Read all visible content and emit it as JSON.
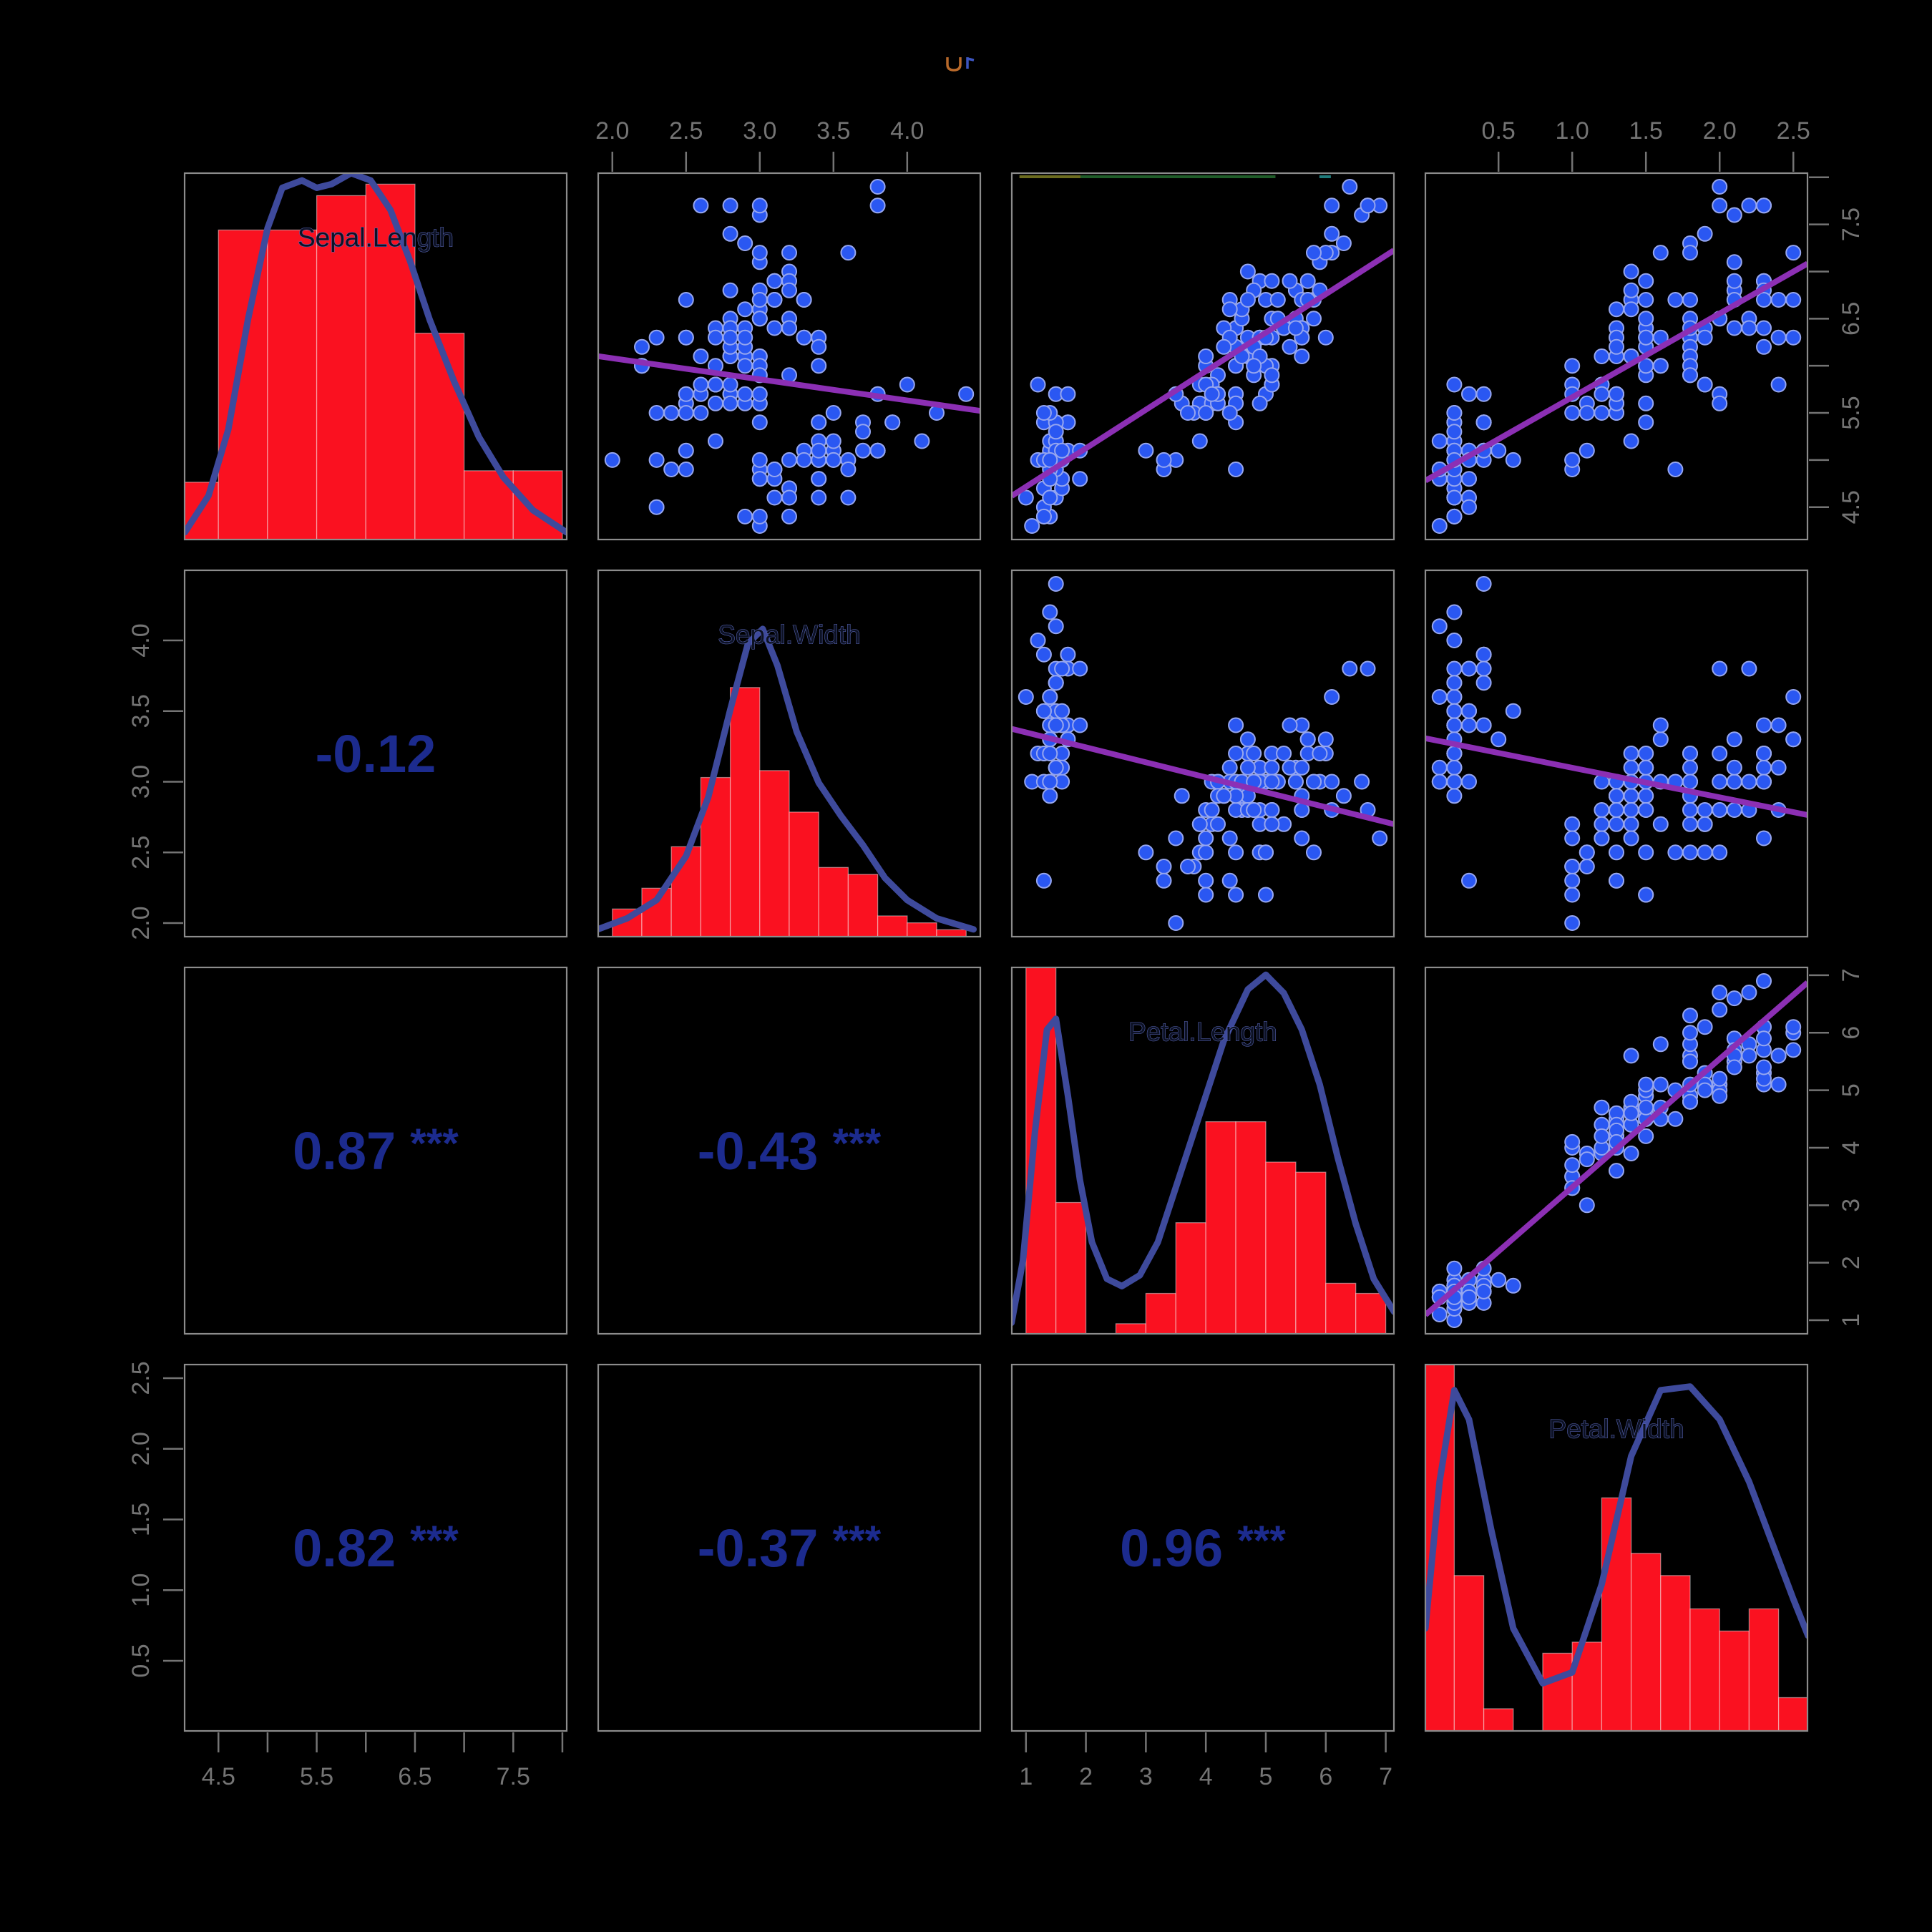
{
  "figure": {
    "kind": "R pairs scatterplot matrix (iris measurements)",
    "background": "#000000"
  },
  "colors": {
    "background": "#000000",
    "panel_border": "#8c8c8c",
    "axis_text": "#747474",
    "tick": "#747474",
    "hist_fill": "#fa1120",
    "hist_edge": "#ffffff",
    "density_line": "#3e4a9c",
    "point_fill": "#2a57f2",
    "point_edge": "#96a6ef",
    "regression_line": "#8c2fb4",
    "correlation_text": "#1c2b8e",
    "diag_label": "#0d1224",
    "diag_label_halo": "#5a67b8",
    "artifact_olive": "#6b6b1e",
    "artifact_green": "#1f5c28",
    "artifact_teal": "#1e7a7a",
    "title_mark_orange": "#b8692a",
    "title_mark_blue": "#3c55c0"
  },
  "variables": [
    {
      "name": "Sepal.Length",
      "min": 4.156,
      "max": 8.044,
      "hist": {
        "start": 4.0,
        "step": 0.5,
        "counts": [
          5,
          27,
          27,
          30,
          31,
          18,
          6,
          6
        ]
      },
      "bar_scale": 0.97,
      "density": [
        [
          4.16,
          0.02
        ],
        [
          4.4,
          0.12
        ],
        [
          4.6,
          0.3
        ],
        [
          4.8,
          0.6
        ],
        [
          5.0,
          0.85
        ],
        [
          5.15,
          0.96
        ],
        [
          5.35,
          0.98
        ],
        [
          5.5,
          0.96
        ],
        [
          5.65,
          0.97
        ],
        [
          5.85,
          1.0
        ],
        [
          6.05,
          0.98
        ],
        [
          6.25,
          0.9
        ],
        [
          6.45,
          0.76
        ],
        [
          6.65,
          0.6
        ],
        [
          6.9,
          0.43
        ],
        [
          7.15,
          0.28
        ],
        [
          7.4,
          0.17
        ],
        [
          7.7,
          0.08
        ],
        [
          8.04,
          0.02
        ]
      ]
    },
    {
      "name": "Sepal.Width",
      "min": 1.904,
      "max": 4.496,
      "hist": {
        "start": 2.0,
        "step": 0.2,
        "counts": [
          4,
          7,
          13,
          23,
          36,
          24,
          18,
          10,
          9,
          3,
          2,
          1
        ]
      },
      "bar_scale": 0.68,
      "density": [
        [
          1.9,
          0.02
        ],
        [
          2.1,
          0.05
        ],
        [
          2.3,
          0.1
        ],
        [
          2.5,
          0.22
        ],
        [
          2.65,
          0.38
        ],
        [
          2.8,
          0.62
        ],
        [
          2.92,
          0.8
        ],
        [
          3.02,
          0.84
        ],
        [
          3.12,
          0.74
        ],
        [
          3.25,
          0.56
        ],
        [
          3.4,
          0.42
        ],
        [
          3.55,
          0.33
        ],
        [
          3.7,
          0.25
        ],
        [
          3.85,
          0.16
        ],
        [
          4.0,
          0.1
        ],
        [
          4.2,
          0.05
        ],
        [
          4.45,
          0.02
        ]
      ]
    },
    {
      "name": "Petal.Length",
      "min": 0.764,
      "max": 7.136,
      "hist": {
        "start": 1.0,
        "step": 0.5,
        "counts": [
          37,
          13,
          0,
          1,
          4,
          11,
          21,
          21,
          17,
          16,
          5,
          4
        ]
      },
      "bar_scale": 1.02,
      "density": [
        [
          0.76,
          0.03
        ],
        [
          0.95,
          0.2
        ],
        [
          1.15,
          0.55
        ],
        [
          1.35,
          0.83
        ],
        [
          1.5,
          0.86
        ],
        [
          1.7,
          0.65
        ],
        [
          1.9,
          0.42
        ],
        [
          2.1,
          0.25
        ],
        [
          2.35,
          0.15
        ],
        [
          2.6,
          0.13
        ],
        [
          2.9,
          0.16
        ],
        [
          3.2,
          0.25
        ],
        [
          3.5,
          0.4
        ],
        [
          3.9,
          0.6
        ],
        [
          4.3,
          0.8
        ],
        [
          4.7,
          0.94
        ],
        [
          5.0,
          0.98
        ],
        [
          5.3,
          0.93
        ],
        [
          5.6,
          0.83
        ],
        [
          5.9,
          0.68
        ],
        [
          6.2,
          0.48
        ],
        [
          6.5,
          0.3
        ],
        [
          6.8,
          0.15
        ],
        [
          7.14,
          0.06
        ]
      ]
    },
    {
      "name": "Petal.Width",
      "min": 0.004,
      "max": 2.596,
      "hist": {
        "start": 0.0,
        "step": 0.2,
        "counts": [
          34,
          14,
          2,
          0,
          7,
          8,
          21,
          16,
          14,
          11,
          9,
          11,
          3
        ]
      },
      "bar_scale": 1.03,
      "density": [
        [
          0.004,
          0.28
        ],
        [
          0.1,
          0.68
        ],
        [
          0.2,
          0.93
        ],
        [
          0.3,
          0.85
        ],
        [
          0.45,
          0.55
        ],
        [
          0.6,
          0.28
        ],
        [
          0.8,
          0.13
        ],
        [
          1.0,
          0.16
        ],
        [
          1.2,
          0.4
        ],
        [
          1.4,
          0.75
        ],
        [
          1.6,
          0.93
        ],
        [
          1.8,
          0.94
        ],
        [
          2.0,
          0.85
        ],
        [
          2.2,
          0.68
        ],
        [
          2.35,
          0.52
        ],
        [
          2.5,
          0.36
        ],
        [
          2.6,
          0.26
        ]
      ]
    }
  ],
  "correlations": [
    {
      "row": 2,
      "col": 1,
      "value": "-0.12",
      "stars": ""
    },
    {
      "row": 3,
      "col": 1,
      "value": "0.87",
      "stars": "***"
    },
    {
      "row": 3,
      "col": 2,
      "value": "-0.43",
      "stars": "***"
    },
    {
      "row": 4,
      "col": 1,
      "value": "0.82",
      "stars": "***"
    },
    {
      "row": 4,
      "col": 2,
      "value": "-0.37",
      "stars": "***"
    },
    {
      "row": 4,
      "col": 3,
      "value": "0.96",
      "stars": "***"
    }
  ],
  "axes": [
    {
      "side": "top",
      "col": 2,
      "var": 1,
      "ticks": [
        2.0,
        2.5,
        3.0,
        3.5,
        4.0
      ],
      "labels": [
        "2.0",
        "2.5",
        "3.0",
        "3.5",
        "4.0"
      ]
    },
    {
      "side": "top",
      "col": 4,
      "var": 3,
      "ticks": [
        0.5,
        1.0,
        1.5,
        2.0,
        2.5
      ],
      "labels": [
        "0.5",
        "1.0",
        "1.5",
        "2.0",
        "2.5"
      ]
    },
    {
      "side": "bottom",
      "col": 1,
      "var": 0,
      "ticks": [
        4.5,
        5.0,
        5.5,
        6.0,
        6.5,
        7.0,
        7.5,
        8.0
      ],
      "labels": [
        "4.5",
        "",
        "5.5",
        "",
        "6.5",
        "",
        "7.5",
        ""
      ]
    },
    {
      "side": "bottom",
      "col": 3,
      "var": 2,
      "ticks": [
        1,
        2,
        3,
        4,
        5,
        6,
        7
      ],
      "labels": [
        "1",
        "2",
        "3",
        "4",
        "5",
        "6",
        "7"
      ]
    },
    {
      "side": "left",
      "row": 2,
      "var": 1,
      "ticks": [
        2.0,
        2.5,
        3.0,
        3.5,
        4.0
      ],
      "labels": [
        "2.0",
        "2.5",
        "3.0",
        "3.5",
        "4.0"
      ]
    },
    {
      "side": "left",
      "row": 4,
      "var": 3,
      "ticks": [
        0.5,
        1.0,
        1.5,
        2.0,
        2.5
      ],
      "labels": [
        "0.5",
        "1.0",
        "1.5",
        "2.0",
        "2.5"
      ]
    },
    {
      "side": "right",
      "row": 1,
      "var": 0,
      "ticks": [
        4.5,
        5.0,
        5.5,
        6.0,
        6.5,
        7.0,
        7.5,
        8.0
      ],
      "labels": [
        "4.5",
        "",
        "5.5",
        "",
        "6.5",
        "",
        "7.5",
        ""
      ]
    },
    {
      "side": "right",
      "row": 3,
      "var": 2,
      "ticks": [
        1,
        2,
        3,
        4,
        5,
        6,
        7
      ],
      "labels": [
        "1",
        "2",
        "3",
        "4",
        "5",
        "6",
        "7"
      ]
    }
  ],
  "chart_data": {
    "type": "scatter",
    "title": "",
    "layout": "4x4 pairs matrix: diagonal = histogram + density, upper triangle = scatter + linear fit, lower triangle = correlation coefficient",
    "variables": [
      "Sepal.Length",
      "Sepal.Width",
      "Petal.Length",
      "Petal.Width"
    ],
    "axis_ranges": {
      "Sepal.Length": [
        4.156,
        8.044
      ],
      "Sepal.Width": [
        1.904,
        4.496
      ],
      "Petal.Length": [
        0.764,
        7.136
      ],
      "Petal.Width": [
        0.004,
        2.596
      ]
    },
    "correlation_matrix_lower": {
      "Sepal.Width_vs_Sepal.Length": "-0.12",
      "Petal.Length_vs_Sepal.Length": "0.87 ***",
      "Petal.Length_vs_Sepal.Width": "-0.43 ***",
      "Petal.Width_vs_Sepal.Length": "0.82 ***",
      "Petal.Width_vs_Sepal.Width": "-0.37 ***",
      "Petal.Width_vs_Petal.Length": "0.96 ***"
    },
    "points": {
      "Sepal.Length": [
        5.1,
        4.9,
        4.7,
        4.6,
        5.0,
        5.4,
        4.6,
        5.0,
        4.4,
        4.9,
        5.4,
        4.8,
        4.8,
        4.3,
        5.8,
        5.7,
        5.4,
        5.1,
        5.7,
        5.1,
        5.4,
        5.1,
        4.6,
        5.1,
        4.8,
        5.0,
        5.0,
        5.2,
        5.2,
        4.7,
        4.8,
        5.4,
        5.2,
        5.5,
        4.9,
        5.0,
        5.5,
        4.9,
        4.4,
        5.1,
        5.0,
        4.5,
        4.4,
        5.0,
        5.1,
        4.8,
        5.1,
        4.6,
        5.3,
        5.0,
        7.0,
        6.4,
        6.9,
        5.5,
        6.5,
        5.7,
        6.3,
        4.9,
        6.6,
        5.2,
        5.0,
        5.9,
        6.0,
        6.1,
        5.6,
        6.7,
        5.6,
        5.8,
        6.2,
        5.6,
        5.9,
        6.1,
        6.3,
        6.1,
        6.4,
        6.6,
        6.8,
        6.7,
        6.0,
        5.7,
        5.5,
        5.5,
        5.8,
        6.0,
        5.4,
        6.0,
        6.7,
        6.3,
        5.6,
        5.5,
        5.5,
        6.1,
        5.8,
        5.0,
        5.6,
        5.7,
        5.7,
        6.2,
        5.1,
        5.7,
        6.3,
        5.8,
        7.1,
        6.3,
        6.5,
        7.6,
        4.9,
        7.3,
        6.7,
        7.2,
        6.5,
        6.4,
        6.8,
        5.7,
        5.8,
        6.4,
        6.5,
        7.7,
        7.7,
        6.0,
        6.9,
        5.6,
        7.7,
        6.3,
        6.7,
        7.2,
        6.2,
        6.1,
        6.4,
        7.2,
        7.4,
        7.9,
        6.4,
        6.3,
        6.1,
        7.7,
        6.3,
        6.4,
        6.0,
        6.9,
        6.7,
        6.9,
        5.8,
        6.8,
        6.7,
        6.7,
        6.3,
        6.5,
        6.2,
        5.9
      ],
      "Sepal.Width": [
        3.5,
        3.0,
        3.2,
        3.1,
        3.6,
        3.9,
        3.4,
        3.4,
        2.9,
        3.1,
        3.7,
        3.4,
        3.0,
        3.0,
        4.0,
        4.4,
        3.9,
        3.5,
        3.8,
        3.8,
        3.4,
        3.7,
        3.6,
        3.3,
        3.4,
        3.0,
        3.4,
        3.5,
        3.4,
        3.2,
        3.1,
        3.4,
        4.1,
        4.2,
        3.1,
        3.2,
        3.5,
        3.6,
        3.0,
        3.4,
        3.5,
        2.3,
        3.2,
        3.5,
        3.8,
        3.0,
        3.8,
        3.2,
        3.7,
        3.3,
        3.2,
        3.2,
        3.1,
        2.3,
        2.8,
        2.8,
        3.3,
        2.4,
        2.9,
        2.7,
        2.0,
        3.0,
        2.2,
        2.9,
        2.9,
        3.1,
        3.0,
        2.7,
        2.2,
        2.5,
        3.2,
        2.8,
        2.5,
        2.8,
        2.9,
        3.0,
        2.8,
        3.0,
        2.9,
        2.6,
        2.4,
        2.4,
        2.7,
        2.7,
        3.0,
        3.4,
        3.1,
        2.3,
        3.0,
        2.5,
        2.6,
        3.0,
        2.6,
        2.3,
        2.7,
        3.0,
        2.9,
        2.9,
        2.5,
        2.8,
        3.3,
        2.7,
        3.0,
        2.9,
        3.0,
        3.0,
        2.5,
        2.9,
        2.5,
        3.6,
        3.2,
        2.7,
        3.0,
        2.5,
        2.8,
        3.2,
        3.0,
        3.8,
        2.6,
        2.2,
        3.2,
        2.8,
        2.8,
        2.7,
        3.3,
        3.2,
        2.8,
        3.0,
        2.8,
        3.0,
        2.8,
        3.8,
        2.8,
        2.8,
        2.6,
        3.0,
        3.4,
        3.1,
        3.0,
        3.1,
        3.1,
        3.1,
        2.7,
        3.2,
        3.3,
        3.0,
        2.5,
        3.0,
        3.4,
        3.0
      ],
      "Petal.Length": [
        1.4,
        1.4,
        1.3,
        1.5,
        1.4,
        1.7,
        1.4,
        1.5,
        1.4,
        1.5,
        1.5,
        1.6,
        1.4,
        1.1,
        1.2,
        1.5,
        1.3,
        1.4,
        1.7,
        1.5,
        1.7,
        1.5,
        1.0,
        1.7,
        1.9,
        1.6,
        1.6,
        1.5,
        1.4,
        1.6,
        1.6,
        1.5,
        1.5,
        1.4,
        1.5,
        1.2,
        1.3,
        1.4,
        1.3,
        1.5,
        1.3,
        1.3,
        1.3,
        1.6,
        1.9,
        1.4,
        1.6,
        1.4,
        1.5,
        1.4,
        4.7,
        4.5,
        4.9,
        4.0,
        4.6,
        4.5,
        4.7,
        3.3,
        4.6,
        3.9,
        3.5,
        4.2,
        4.0,
        4.7,
        3.6,
        4.4,
        4.5,
        4.1,
        4.5,
        3.9,
        4.8,
        4.0,
        4.9,
        4.7,
        4.3,
        4.4,
        4.8,
        5.0,
        4.5,
        3.5,
        3.8,
        3.7,
        3.9,
        5.1,
        4.5,
        4.5,
        4.7,
        4.4,
        4.1,
        4.0,
        4.4,
        4.6,
        4.0,
        3.3,
        4.2,
        4.2,
        4.2,
        4.3,
        3.0,
        4.1,
        6.0,
        5.1,
        5.9,
        5.6,
        5.8,
        6.6,
        4.5,
        6.3,
        5.8,
        6.1,
        5.1,
        5.3,
        5.5,
        5.0,
        5.1,
        5.3,
        5.5,
        6.7,
        6.9,
        5.0,
        5.7,
        4.9,
        6.7,
        4.9,
        5.7,
        6.0,
        4.8,
        4.9,
        5.6,
        5.8,
        6.1,
        6.4,
        5.6,
        5.1,
        5.6,
        6.1,
        5.6,
        5.5,
        4.8,
        5.4,
        5.6,
        5.1,
        5.1,
        5.9,
        5.7,
        5.2,
        5.0,
        5.2,
        5.4,
        5.1
      ],
      "Petal.Width": [
        0.2,
        0.2,
        0.2,
        0.2,
        0.2,
        0.4,
        0.3,
        0.2,
        0.2,
        0.1,
        0.2,
        0.2,
        0.1,
        0.1,
        0.2,
        0.4,
        0.4,
        0.3,
        0.3,
        0.3,
        0.2,
        0.4,
        0.2,
        0.5,
        0.2,
        0.2,
        0.4,
        0.2,
        0.2,
        0.2,
        0.2,
        0.4,
        0.1,
        0.2,
        0.2,
        0.2,
        0.2,
        0.1,
        0.2,
        0.2,
        0.3,
        0.3,
        0.2,
        0.6,
        0.4,
        0.3,
        0.2,
        0.2,
        0.2,
        0.2,
        1.4,
        1.5,
        1.5,
        1.3,
        1.5,
        1.3,
        1.6,
        1.0,
        1.3,
        1.4,
        1.0,
        1.5,
        1.0,
        1.4,
        1.3,
        1.4,
        1.5,
        1.0,
        1.5,
        1.1,
        1.8,
        1.3,
        1.5,
        1.2,
        1.3,
        1.4,
        1.4,
        1.7,
        1.5,
        1.0,
        1.1,
        1.0,
        1.2,
        1.6,
        1.5,
        1.6,
        1.5,
        1.3,
        1.3,
        1.3,
        1.2,
        1.4,
        1.2,
        1.0,
        1.3,
        1.2,
        1.3,
        1.3,
        1.1,
        1.3,
        2.5,
        1.9,
        2.1,
        1.8,
        2.2,
        2.1,
        1.7,
        1.8,
        1.8,
        2.5,
        2.0,
        1.9,
        2.1,
        2.0,
        2.4,
        2.3,
        1.8,
        2.2,
        2.3,
        1.5,
        2.3,
        2.0,
        2.0,
        1.8,
        2.1,
        1.8,
        1.8,
        1.8,
        2.1,
        1.6,
        1.9,
        2.0,
        2.2,
        1.5,
        1.4,
        2.3,
        2.4,
        1.8,
        1.8,
        2.1,
        2.4,
        2.3,
        1.9,
        2.3,
        2.5,
        2.3,
        1.9,
        2.0,
        2.3,
        1.8
      ]
    }
  }
}
